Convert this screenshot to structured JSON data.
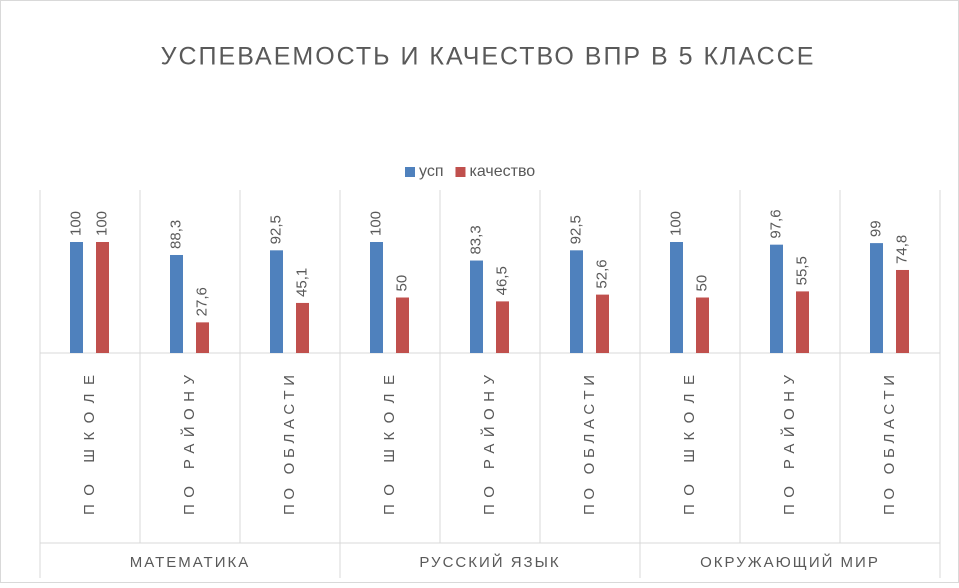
{
  "chart_data": {
    "type": "bar",
    "title": "УСПЕВАЕМОСТЬ И КАЧЕСТВО ВПР В 5 КЛАССЕ",
    "categories": [
      "ПО ШКОЛЕ",
      "ПО РАЙОНУ",
      "ПО ОБЛАСТИ",
      "ПО ШКОЛЕ",
      "ПО РАЙОНУ",
      "ПО ОБЛАСТИ",
      "ПО ШКОЛЕ",
      "ПО РАЙОНУ",
      "ПО ОБЛАСТИ"
    ],
    "groups": [
      "МАТЕМАТИКА",
      "РУССКИЙ ЯЗЫК",
      "ОКРУЖАЮЩИЙ МИР"
    ],
    "series": [
      {
        "name": "усп",
        "color": "#4f81bd",
        "values": [
          100,
          88.3,
          92.5,
          100,
          83.3,
          92.5,
          100,
          97.6,
          99
        ],
        "value_labels": [
          "100",
          "88,3",
          "92,5",
          "100",
          "83,3",
          "92,5",
          "100",
          "97,6",
          "99"
        ]
      },
      {
        "name": "качество",
        "color": "#c0504d",
        "values": [
          100,
          27.6,
          45.1,
          50,
          46.5,
          52.6,
          50,
          55.5,
          74.8
        ],
        "value_labels": [
          "100",
          "27,6",
          "45,1",
          "50",
          "46,5",
          "52,6",
          "50",
          "55,5",
          "74,8"
        ]
      }
    ],
    "legend": "top"
  }
}
